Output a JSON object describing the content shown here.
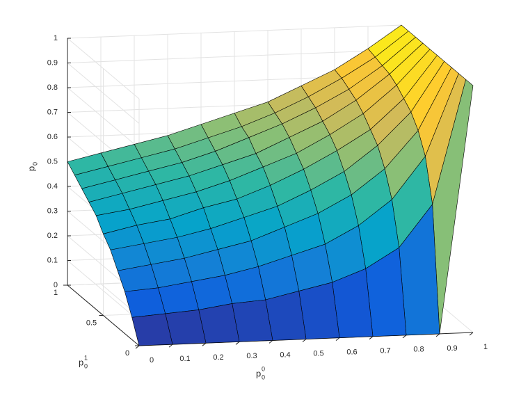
{
  "chart_data": {
    "type": "surface",
    "colormap": "parula",
    "edge_color": "#000000",
    "grid": true,
    "xlabel": {
      "base": "p",
      "sub": "0",
      "sup": "0"
    },
    "ylabel": {
      "base": "p",
      "sub": "0",
      "sup": "1"
    },
    "zlabel": {
      "base": "p",
      "sub": "0"
    },
    "x": [
      0,
      0.1,
      0.2,
      0.3,
      0.4,
      0.5,
      0.6,
      0.7,
      0.8,
      0.9,
      1
    ],
    "y": [
      0,
      0.1,
      0.2,
      0.3,
      0.4,
      0.5,
      0.6,
      0.7,
      0.8,
      0.9,
      1
    ],
    "z": [
      [
        0,
        0,
        0,
        0,
        0,
        0,
        0,
        0,
        0,
        0,
        1
      ],
      [
        0.09,
        0.1,
        0.11,
        0.13,
        0.14,
        0.17,
        0.2,
        0.25,
        0.33,
        0.5,
        1
      ],
      [
        0.17,
        0.18,
        0.2,
        0.22,
        0.25,
        0.29,
        0.33,
        0.4,
        0.5,
        0.67,
        1
      ],
      [
        0.23,
        0.25,
        0.27,
        0.3,
        0.33,
        0.38,
        0.43,
        0.5,
        0.6,
        0.75,
        1
      ],
      [
        0.29,
        0.31,
        0.33,
        0.36,
        0.4,
        0.44,
        0.5,
        0.57,
        0.67,
        0.8,
        1
      ],
      [
        0.33,
        0.36,
        0.38,
        0.42,
        0.45,
        0.5,
        0.56,
        0.63,
        0.71,
        0.83,
        1
      ],
      [
        0.38,
        0.4,
        0.43,
        0.46,
        0.5,
        0.55,
        0.6,
        0.67,
        0.75,
        0.86,
        1
      ],
      [
        0.41,
        0.44,
        0.47,
        0.5,
        0.54,
        0.58,
        0.64,
        0.7,
        0.78,
        0.88,
        1
      ],
      [
        0.44,
        0.47,
        0.5,
        0.53,
        0.57,
        0.62,
        0.67,
        0.73,
        0.8,
        0.89,
        1
      ],
      [
        0.47,
        0.5,
        0.53,
        0.56,
        0.6,
        0.64,
        0.69,
        0.75,
        0.82,
        0.9,
        1
      ],
      [
        0.5,
        0.53,
        0.56,
        0.59,
        0.63,
        0.67,
        0.71,
        0.77,
        0.83,
        0.91,
        1
      ]
    ],
    "xlim": [
      0,
      1
    ],
    "ylim": [
      0,
      1
    ],
    "zlim": [
      0,
      1
    ],
    "xticks": [
      0,
      0.1,
      0.2,
      0.3,
      0.4,
      0.5,
      0.6,
      0.7,
      0.8,
      0.9,
      1
    ],
    "yticks": [
      0,
      0.5,
      1
    ],
    "zticks": [
      0,
      0.1,
      0.2,
      0.3,
      0.4,
      0.5,
      0.6,
      0.7,
      0.8,
      0.9,
      1
    ]
  }
}
